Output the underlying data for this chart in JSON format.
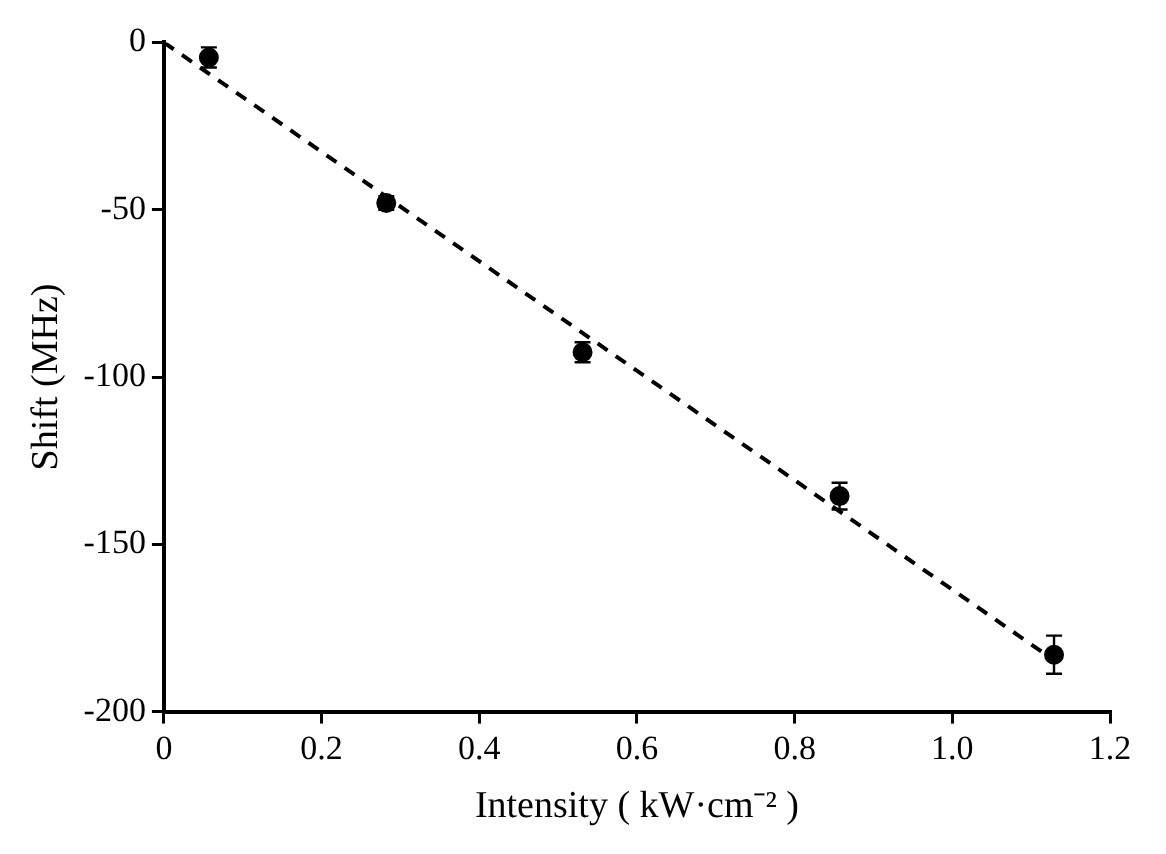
{
  "chart_data": {
    "type": "scatter",
    "xlabel": "Intensity ( kW·cm⁻² )",
    "ylabel": "Shift (MHz)",
    "xlim": [
      0,
      1.2
    ],
    "xticks": [
      0,
      0.2,
      0.4,
      0.6,
      0.8,
      {
        "value": 1,
        "label": "1.0"
      },
      1.2
    ],
    "ylim": [
      -200,
      0
    ],
    "yticks": [
      -200,
      -150,
      -100,
      -50,
      0
    ],
    "grid": false,
    "legend": false,
    "series": [
      {
        "type": "scatter",
        "color": "#000000",
        "x": [
          0.057,
          0.282,
          0.531,
          0.857,
          1.129
        ],
        "values": [
          -4.5,
          -48,
          -92.6,
          -135.6,
          -183
        ],
        "errors": [
          3,
          2,
          3,
          4,
          5.7
        ]
      },
      {
        "type": "line",
        "color": "#000000",
        "marker": "none",
        "line_style": "dashed",
        "x": [
          0,
          1.125
        ],
        "values": [
          0,
          -184
        ]
      }
    ]
  }
}
